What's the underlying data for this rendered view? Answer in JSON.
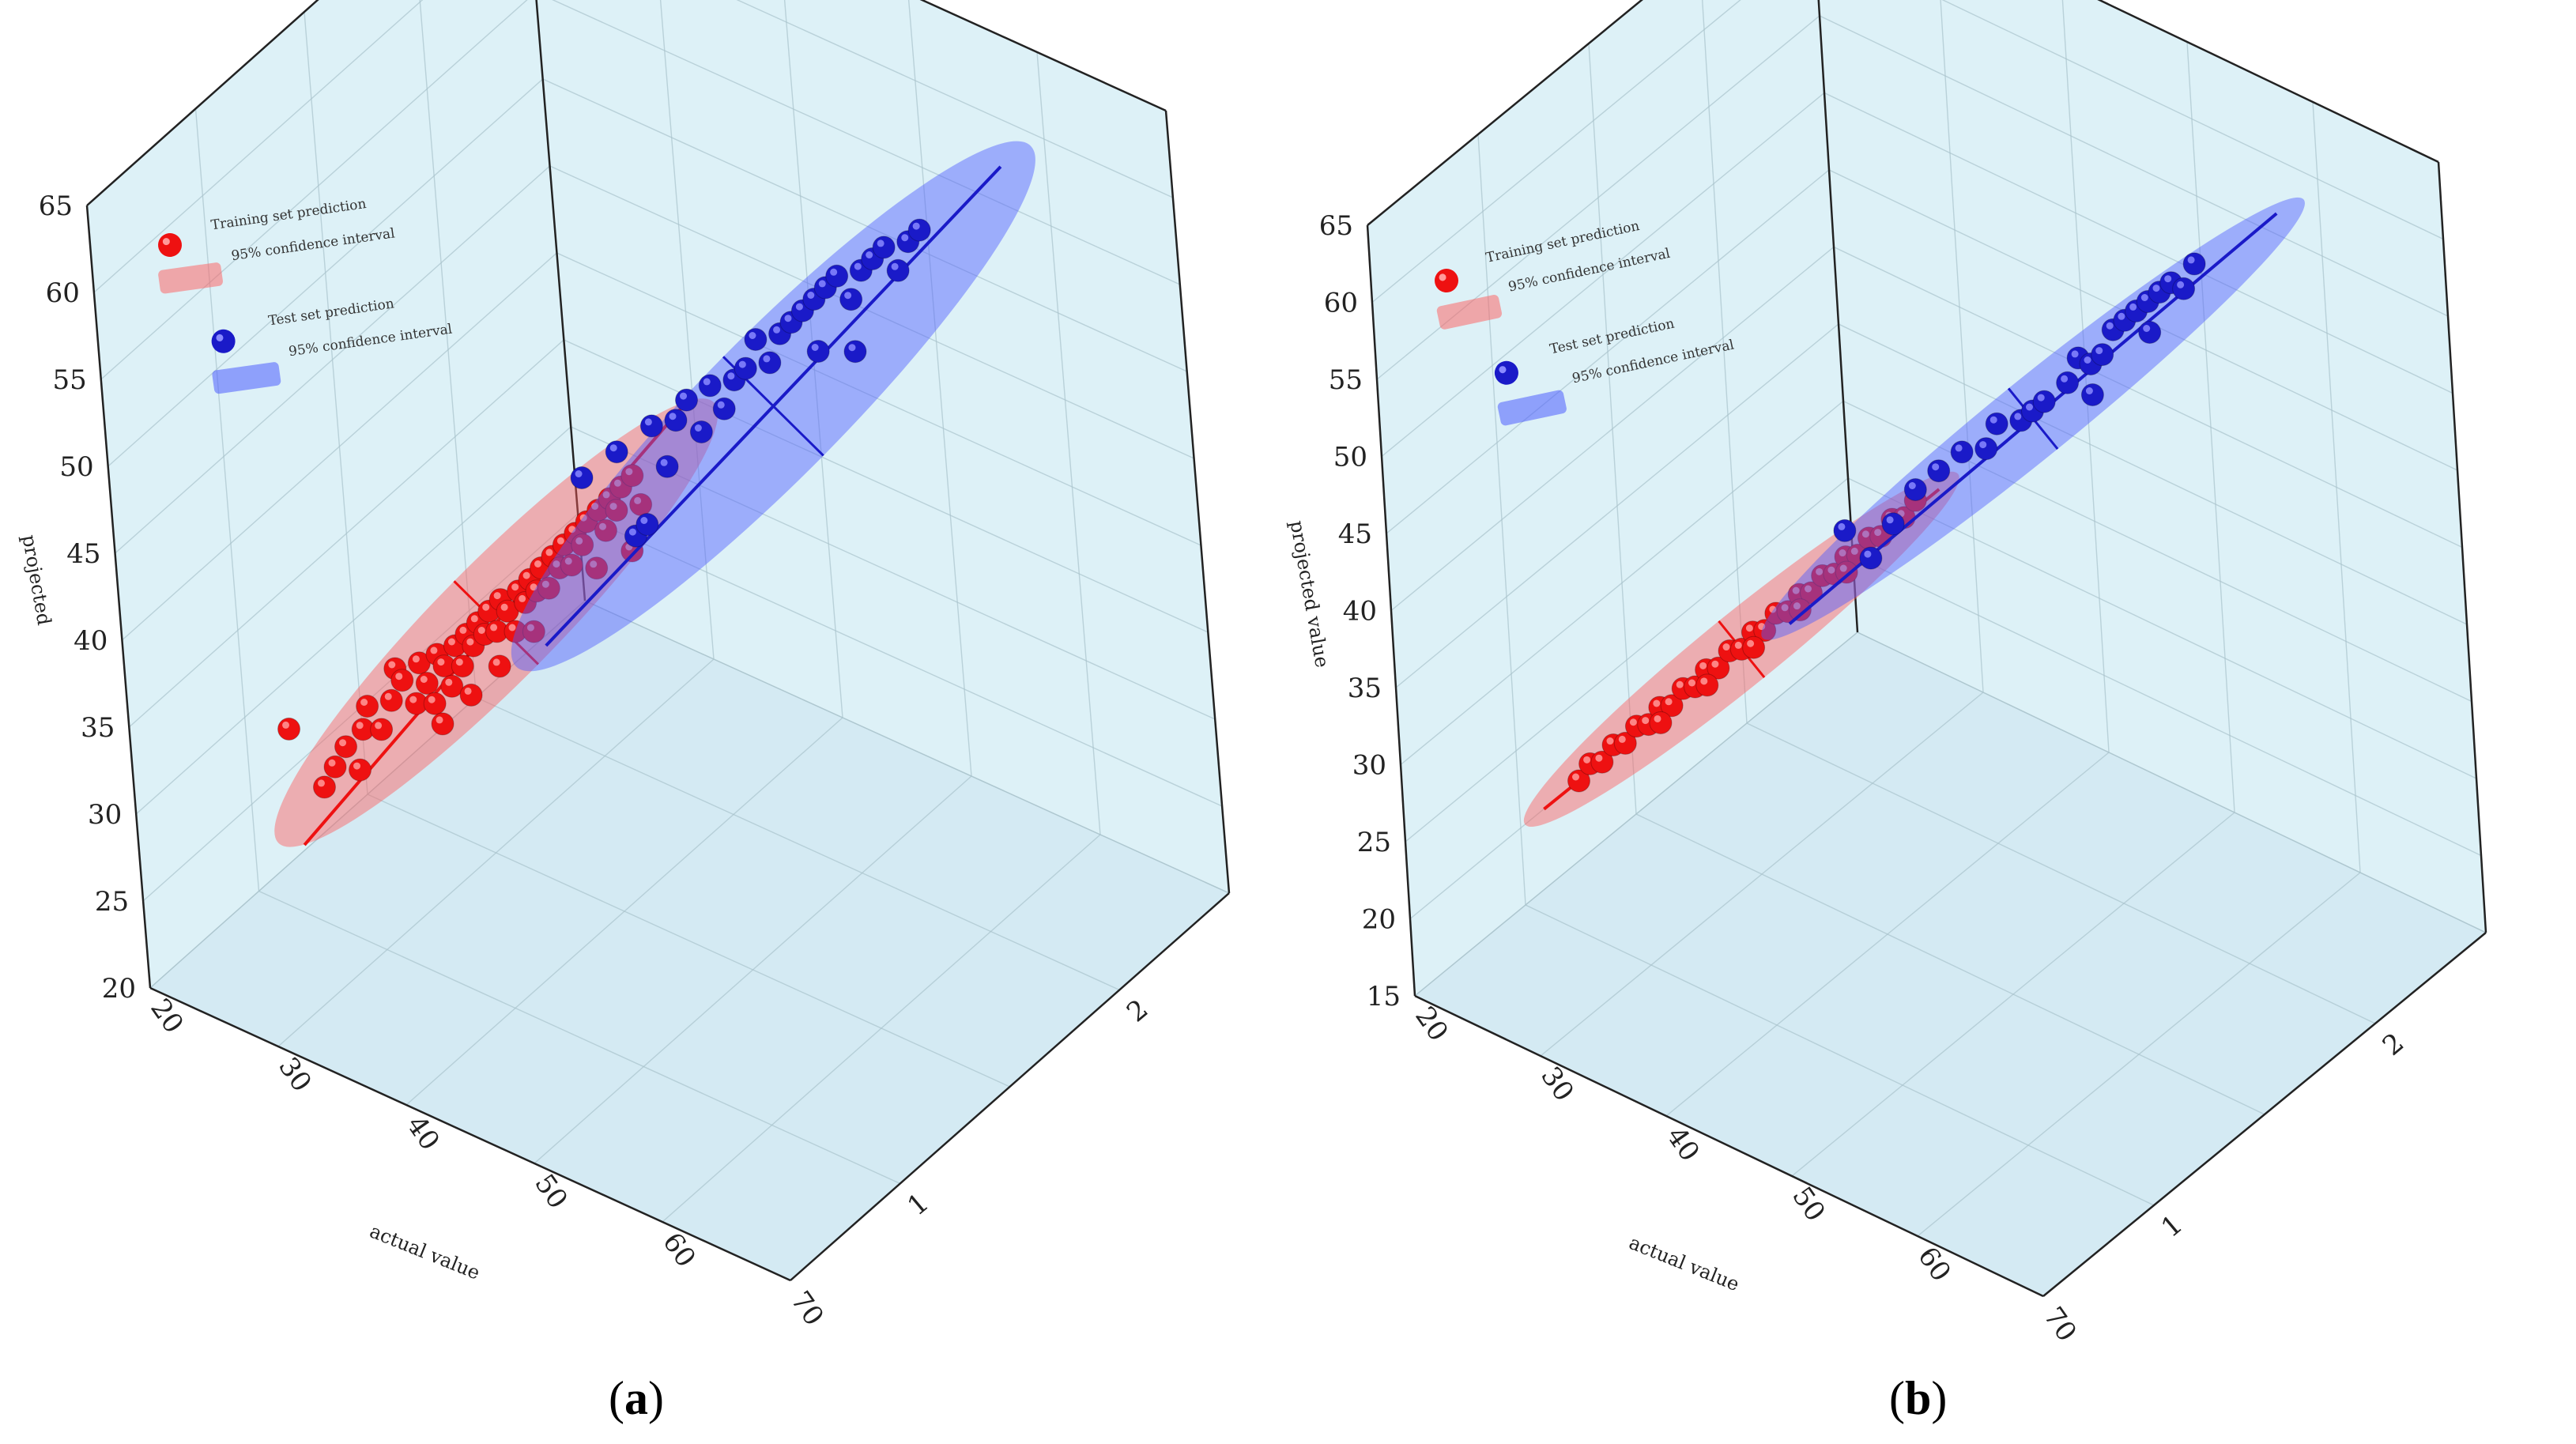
{
  "colors": {
    "wall": "#d7eef6",
    "floor": "#cfe8f2",
    "grid": "#a9c3cc",
    "edge": "#222222",
    "train": "#ee1111",
    "train_fill": "#ff5c5c",
    "test": "#1a1ac8",
    "test_fill": "#4d5cff"
  },
  "chart_data": [
    {
      "panel": "a",
      "caption_letter": "a",
      "type": "scatter",
      "zlabel": "projected",
      "xlabel": "actual value",
      "z_ticks": [
        "20",
        "25",
        "30",
        "35",
        "40",
        "45",
        "50",
        "55",
        "60",
        "65"
      ],
      "x_ticks": [
        "20",
        "30",
        "40",
        "50",
        "60",
        "70"
      ],
      "y_ticks": [
        "1",
        "2"
      ],
      "zlim": [
        20,
        65
      ],
      "xlim": [
        20,
        70
      ],
      "ylim": [
        0.5,
        2.5
      ],
      "legend": {
        "train_label": "Training set prediction",
        "train_ci_label": "95% confidence interval",
        "test_label": "Test set prediction",
        "test_ci_label": "95% confidence interval"
      },
      "series": [
        {
          "name": "Training set prediction",
          "group": 1,
          "fit": [
            [
              24,
              24
            ],
            [
              58,
              61
            ]
          ],
          "ci": {
            "center": [
              41,
              42.5
            ],
            "len": 22,
            "width": 4.2
          },
          "points": [
            [
              23.5,
              30.5
            ],
            [
              26,
              28
            ],
            [
              27,
              29.5
            ],
            [
              28,
              31
            ],
            [
              29,
              30
            ],
            [
              29.5,
              32.5
            ],
            [
              30,
              34
            ],
            [
              31,
              33
            ],
            [
              32,
              35
            ],
            [
              32.5,
              37
            ],
            [
              33,
              36.5
            ],
            [
              34,
              35.5
            ],
            [
              34.5,
              38
            ],
            [
              35,
              37
            ],
            [
              35.5,
              36
            ],
            [
              36,
              39
            ],
            [
              36.5,
              38.5
            ],
            [
              37,
              37.5
            ],
            [
              37.5,
              40
            ],
            [
              38,
              39
            ],
            [
              38.5,
              41
            ],
            [
              39,
              40.5
            ],
            [
              39.5,
              42
            ],
            [
              40,
              41.5
            ],
            [
              40.5,
              43
            ],
            [
              41,
              42
            ],
            [
              41.5,
              44
            ],
            [
              42,
              43.5
            ],
            [
              42.5,
              42.5
            ],
            [
              43,
              45
            ],
            [
              43.5,
              44.5
            ],
            [
              44,
              46
            ],
            [
              44.5,
              45.5
            ],
            [
              45,
              47
            ],
            [
              45.5,
              46
            ],
            [
              46,
              48
            ],
            [
              46.5,
              47.5
            ],
            [
              47,
              49
            ],
            [
              47.5,
              48
            ],
            [
              48,
              50
            ],
            [
              48.5,
              49.5
            ],
            [
              49,
              51
            ],
            [
              50,
              52
            ],
            [
              50.5,
              51
            ],
            [
              51,
              53
            ],
            [
              51.5,
              52.5
            ],
            [
              52,
              54
            ],
            [
              53,
              55
            ],
            [
              53.5,
              53.5
            ],
            [
              52.5,
              50.5
            ],
            [
              44,
              43
            ],
            [
              41,
              40
            ],
            [
              38.5,
              37.5
            ],
            [
              36,
              35
            ],
            [
              49.5,
              48.5
            ]
          ]
        },
        {
          "name": "Test set prediction",
          "group": 2,
          "fit": [
            [
              26,
              25
            ],
            [
              66,
              66
            ]
          ],
          "ci": {
            "center": [
              46,
              45.5
            ],
            "len": 26,
            "width": 5
          },
          "points": [
            [
              30,
              36
            ],
            [
              33,
              38.5
            ],
            [
              34,
              34
            ],
            [
              35,
              35
            ],
            [
              36,
              41
            ],
            [
              37,
              39
            ],
            [
              38,
              42
            ],
            [
              39,
              43.5
            ],
            [
              40,
              42
            ],
            [
              41,
              45
            ],
            [
              42,
              44
            ],
            [
              43,
              46
            ],
            [
              44,
              47
            ],
            [
              45,
              49
            ],
            [
              46,
              48
            ],
            [
              47,
              50
            ],
            [
              48,
              51
            ],
            [
              49,
              52
            ],
            [
              50,
              53
            ],
            [
              51,
              54
            ],
            [
              52,
              55
            ],
            [
              53,
              54
            ],
            [
              54,
              56
            ],
            [
              55,
              57
            ],
            [
              56,
              58
            ],
            [
              57,
              57
            ],
            [
              58,
              59
            ],
            [
              59,
              60
            ],
            [
              53,
              51
            ],
            [
              50,
              50
            ]
          ]
        }
      ]
    },
    {
      "panel": "b",
      "caption_letter": "b",
      "type": "scatter",
      "zlabel": "projected value",
      "xlabel": "actual value",
      "z_ticks": [
        "15",
        "20",
        "25",
        "30",
        "35",
        "40",
        "45",
        "50",
        "55",
        "60",
        "65"
      ],
      "x_ticks": [
        "20",
        "30",
        "40",
        "50",
        "60",
        "70"
      ],
      "y_ticks": [
        "1",
        "2"
      ],
      "zlim": [
        15,
        65
      ],
      "xlim": [
        20,
        70
      ],
      "ylim": [
        0.5,
        2.5
      ],
      "legend": {
        "train_label": "Training set prediction",
        "train_ci_label": "95% confidence interval",
        "test_label": "Test set prediction",
        "test_ci_label": "95% confidence interval"
      },
      "series": [
        {
          "name": "Training set prediction",
          "group": 1,
          "fit": [
            [
              22,
              22
            ],
            [
              56,
              56
            ]
          ],
          "ci": {
            "center": [
              39,
              39
            ],
            "len": 20,
            "width": 2.6
          },
          "points": [
            [
              25,
              25
            ],
            [
              26,
              26.5
            ],
            [
              27,
              27
            ],
            [
              28,
              28.5
            ],
            [
              29,
              29
            ],
            [
              30,
              30.5
            ],
            [
              31,
              31
            ],
            [
              32,
              32.5
            ],
            [
              33,
              33
            ],
            [
              34,
              34.5
            ],
            [
              35,
              35
            ],
            [
              36,
              36.5
            ],
            [
              37,
              37
            ],
            [
              38,
              38.5
            ],
            [
              39,
              39
            ],
            [
              40,
              40.5
            ],
            [
              41,
              41
            ],
            [
              42,
              42.5
            ],
            [
              43,
              43
            ],
            [
              44,
              44.5
            ],
            [
              45,
              45
            ],
            [
              46,
              46.5
            ],
            [
              47,
              47
            ],
            [
              48,
              48.5
            ],
            [
              49,
              49
            ],
            [
              50,
              50.5
            ],
            [
              51,
              51
            ],
            [
              52,
              52.5
            ],
            [
              53,
              53
            ],
            [
              54,
              54.5
            ],
            [
              44,
              43.5
            ],
            [
              40,
              39.5
            ],
            [
              36,
              35.5
            ],
            [
              32,
              31.5
            ],
            [
              48,
              47.5
            ]
          ]
        },
        {
          "name": "Test set prediction",
          "group": 2,
          "fit": [
            [
              24,
              23
            ],
            [
              66,
              66
            ]
          ],
          "ci": {
            "center": [
              45,
              44.5
            ],
            "len": 25,
            "width": 2.8
          },
          "points": [
            [
              29,
              31
            ],
            [
              31,
              30
            ],
            [
              33,
              33
            ],
            [
              35,
              36
            ],
            [
              37,
              38
            ],
            [
              39,
              40
            ],
            [
              41,
              41
            ],
            [
              42,
              43
            ],
            [
              44,
              44
            ],
            [
              45,
              45
            ],
            [
              46,
              46
            ],
            [
              48,
              48
            ],
            [
              49,
              50
            ],
            [
              50,
              50
            ],
            [
              51,
              51
            ],
            [
              52,
              53
            ],
            [
              53,
              54
            ],
            [
              54,
              55
            ],
            [
              55,
              56
            ],
            [
              56,
              57
            ],
            [
              57,
              58
            ],
            [
              58,
              58
            ],
            [
              59,
              60
            ],
            [
              55,
              54
            ],
            [
              50,
              48
            ]
          ]
        }
      ]
    }
  ]
}
